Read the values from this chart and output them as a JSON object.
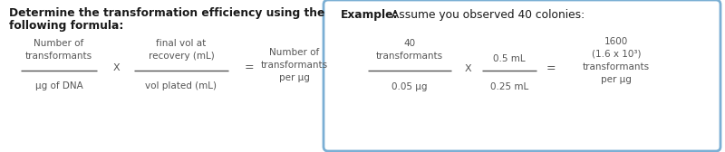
{
  "bg_color": "#ffffff",
  "left_title_line1": "Determine the transformation efficiency using the",
  "left_title_line2": "following formula:",
  "title_color": "#1a1a1a",
  "formula_color": "#555555",
  "frac1_num": "Number of\ntransformants",
  "frac1_den": "μg of DNA",
  "multiply": "X",
  "frac2_num": "final vol at\nrecovery (mL)",
  "frac2_den": "vol plated (mL)",
  "equals": "=",
  "result": "Number of\ntransformants\nper μg",
  "box_title_bold": "Example:",
  "box_title_normal": " Assume you observed 40 colonies:",
  "box_border_color": "#7bafd4",
  "box_bg_color": "#ffffff",
  "ex_frac1_num": "40\ntransformants",
  "ex_frac1_den": "0.05 μg",
  "ex_multiply": "X",
  "ex_frac2_num": "0.5 mL",
  "ex_frac2_den": "0.25 mL",
  "ex_equals": "=",
  "ex_result_line1": "1600",
  "ex_result_line2": "(1.6 x 10³)",
  "ex_result_line3": "transformants",
  "ex_result_line4": "per μg"
}
